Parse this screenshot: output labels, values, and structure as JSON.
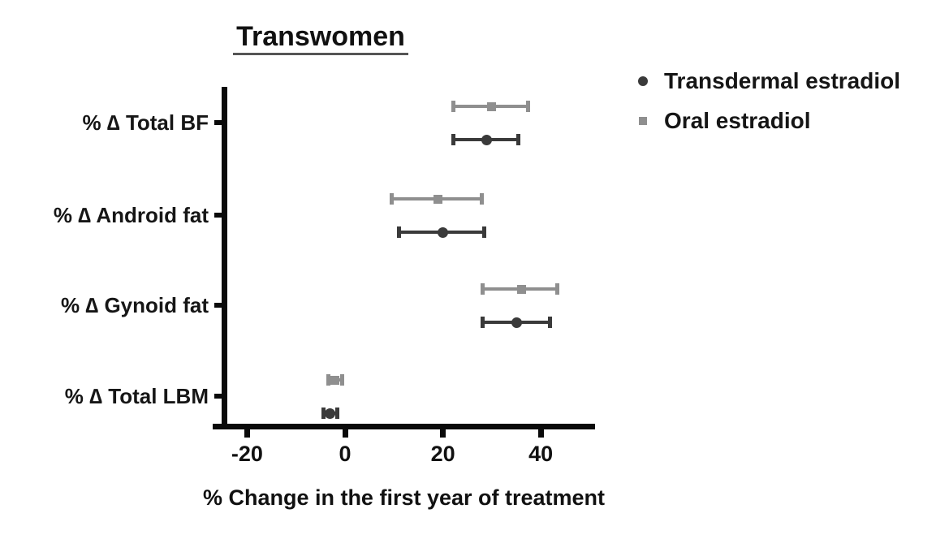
{
  "chart_data": {
    "type": "scatter",
    "subtype": "forest-plot-with-error-bars",
    "title": "Transwomen",
    "xlabel": "% Change in the first year of treatment",
    "ylabel": "",
    "categories": [
      "% ∆ Total BF",
      "% ∆ Android fat",
      "% ∆ Gynoid fat",
      "% ∆ Total LBM"
    ],
    "x_ticks": [
      -20,
      0,
      20,
      40
    ],
    "xlim": [
      -27,
      51
    ],
    "grid": false,
    "legend_position": "top-right",
    "series": [
      {
        "name": "Transdermal estradiol",
        "marker": "circle",
        "color": "#3a3a3a",
        "values": [
          29,
          20,
          35,
          -3
        ],
        "ci_low": [
          22,
          11,
          28,
          -4.5
        ],
        "ci_high": [
          35.5,
          28.5,
          42,
          -1.5
        ]
      },
      {
        "name": "Oral estradiol",
        "marker": "square",
        "color": "#8f8f8f",
        "values": [
          30,
          19,
          36,
          -2
        ],
        "ci_low": [
          22,
          9.5,
          28,
          -3.5
        ],
        "ci_high": [
          37.5,
          28,
          43.5,
          -0.5
        ]
      }
    ]
  },
  "colors": {
    "background": "#ffffff",
    "axis": "#0a0a0a",
    "text": "#111111",
    "transdermal": "#3a3a3a",
    "oral": "#8f8f8f"
  }
}
